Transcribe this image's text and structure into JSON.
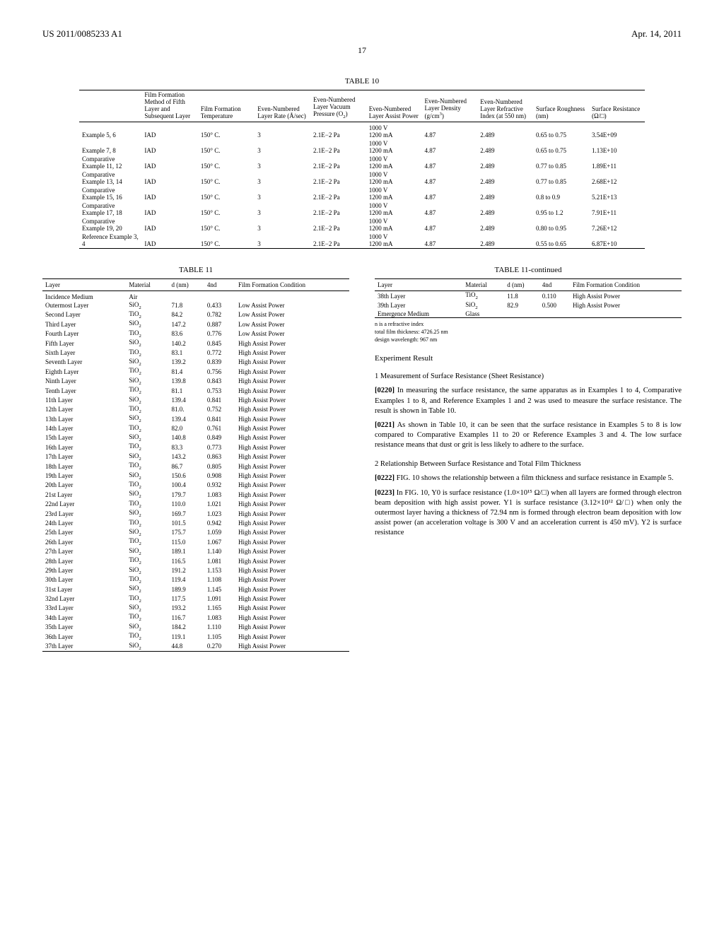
{
  "header": {
    "left": "US 2011/0085233 A1",
    "right": "Apr. 14, 2011",
    "page": "17"
  },
  "table10": {
    "title": "TABLE 10",
    "columns": [
      "",
      "Film Formation Method of Fifth Layer and Subsequent Layer",
      "Film Formation Temperature",
      "Even-Numbered Layer Rate (Å/sec)",
      "Even-Numbered Layer Vacuum Pressure (O₂)",
      "Even-Numbered Layer Assist Power",
      "Even-Numbered Layer Density (g/cm³)",
      "Even-Numbered Layer Refractive Index (at 550 nm)",
      "Surface Roughness (nm)",
      "Surface Resistance (Ω/□)"
    ],
    "rows": [
      [
        "Example 5, 6",
        "IAD",
        "150° C.",
        "3",
        "2.1E−2 Pa",
        "1000 V\n1200 mA",
        "4.87",
        "2.489",
        "0.65 to 0.75",
        "3.54E+09"
      ],
      [
        "Example 7, 8",
        "IAD",
        "150° C.",
        "3",
        "2.1E−2 Pa",
        "1000 V\n1200 mA",
        "4.87",
        "2.489",
        "0.65 to 0.75",
        "1.13E+10"
      ],
      [
        "Comparative Example 11, 12",
        "IAD",
        "150° C.",
        "3",
        "2.1E−2 Pa",
        "1000 V\n1200 mA",
        "4.87",
        "2.489",
        "0.77 to 0.85",
        "1.89E+11"
      ],
      [
        "Comparative Example 13, 14",
        "IAD",
        "150° C.",
        "3",
        "2.1E−2 Pa",
        "1000 V\n1200 mA",
        "4.87",
        "2.489",
        "0.77 to 0.85",
        "2.68E+12"
      ],
      [
        "Comparative Example 15, 16",
        "IAD",
        "150° C.",
        "3",
        "2.1E−2 Pa",
        "1000 V\n1200 mA",
        "4.87",
        "2.489",
        "0.8 to 0.9",
        "5.21E+13"
      ],
      [
        "Comparative Example 17, 18",
        "IAD",
        "150° C.",
        "3",
        "2.1E−2 Pa",
        "1000 V\n1200 mA",
        "4.87",
        "2.489",
        "0.95 to 1.2",
        "7.91E+11"
      ],
      [
        "Comparative Example 19, 20",
        "IAD",
        "150° C.",
        "3",
        "2.1E−2 Pa",
        "1000 V\n1200 mA",
        "4.87",
        "2.489",
        "0.80 to 0.95",
        "7.26E+12"
      ],
      [
        "Reference Example 3, 4",
        "IAD",
        "150° C.",
        "3",
        "2.1E−2 Pa",
        "1000 V\n1200 mA",
        "4.87",
        "2.489",
        "0.55 to 0.65",
        "6.87E+10"
      ]
    ]
  },
  "table11": {
    "title": "TABLE 11",
    "columns": [
      "Layer",
      "Material",
      "d (nm)",
      "4nd",
      "Film Formation Condition"
    ],
    "rows": [
      [
        "Incidence Medium",
        "Air",
        "",
        "",
        ""
      ],
      [
        "Outermost Layer",
        "SiO₂",
        "71.8",
        "0.433",
        "Low Assist Power"
      ],
      [
        "Second Layer",
        "TiO₂",
        "84.2",
        "0.782",
        "Low Assist Power"
      ],
      [
        "Third Layer",
        "SiO₂",
        "147.2",
        "0.887",
        "Low Assist Power"
      ],
      [
        "Fourth Layer",
        "TiO₂",
        "83.6",
        "0.776",
        "Low Assist Power"
      ],
      [
        "Fifth Layer",
        "SiO₂",
        "140.2",
        "0.845",
        "High Assist Power"
      ],
      [
        "Sixth Layer",
        "TiO₂",
        "83.1",
        "0.772",
        "High Assist Power"
      ],
      [
        "Seventh Layer",
        "SiO₂",
        "139.2",
        "0.839",
        "High Assist Power"
      ],
      [
        "Eighth Layer",
        "TiO₂",
        "81.4",
        "0.756",
        "High Assist Power"
      ],
      [
        "Ninth Layer",
        "SiO₂",
        "139.8",
        "0.843",
        "High Assist Power"
      ],
      [
        "Tenth Layer",
        "TiO₂",
        "81.1",
        "0.753",
        "High Assist Power"
      ],
      [
        "11th Layer",
        "SiO₂",
        "139.4",
        "0.841",
        "High Assist Power"
      ],
      [
        "12th Layer",
        "TiO₂",
        "81.0.",
        "0.752",
        "High Assist Power"
      ],
      [
        "13th Layer",
        "SiO₂",
        "139.4",
        "0.841",
        "High Assist Power"
      ],
      [
        "14th Layer",
        "TiO₂",
        "82.0",
        "0.761",
        "High Assist Power"
      ],
      [
        "15th Layer",
        "SiO₂",
        "140.8",
        "0.849",
        "High Assist Power"
      ],
      [
        "16th Layer",
        "TiO₂",
        "83.3",
        "0.773",
        "High Assist Power"
      ],
      [
        "17th Layer",
        "SiO₂",
        "143.2",
        "0.863",
        "High Assist Power"
      ],
      [
        "18th Layer",
        "TiO₂",
        "86.7",
        "0.805",
        "High Assist Power"
      ],
      [
        "19th Layer",
        "SiO₂",
        "150.6",
        "0.908",
        "High Assist Power"
      ],
      [
        "20th Layer",
        "TiO₂",
        "100.4",
        "0.932",
        "High Assist Power"
      ],
      [
        "21st Layer",
        "SiO₂",
        "179.7",
        "1.083",
        "High Assist Power"
      ],
      [
        "22nd Layer",
        "TiO₂",
        "110.0",
        "1.021",
        "High Assist Power"
      ],
      [
        "23rd Layer",
        "SiO₂",
        "169.7",
        "1.023",
        "High Assist Power"
      ],
      [
        "24th Layer",
        "TiO₂",
        "101.5",
        "0.942",
        "High Assist Power"
      ],
      [
        "25th Layer",
        "SiO₂",
        "175.7",
        "1.059",
        "High Assist Power"
      ],
      [
        "26th Layer",
        "TiO₂",
        "115.0",
        "1.067",
        "High Assist Power"
      ],
      [
        "27th Layer",
        "SiO₂",
        "189.1",
        "1.140",
        "High Assist Power"
      ],
      [
        "28th Layer",
        "TiO₂",
        "116.5",
        "1.081",
        "High Assist Power"
      ],
      [
        "29th Layer",
        "SiO₂",
        "191.2",
        "1.153",
        "High Assist Power"
      ],
      [
        "30th Layer",
        "TiO₂",
        "119.4",
        "1.108",
        "High Assist Power"
      ],
      [
        "31st Layer",
        "SiO₂",
        "189.9",
        "1.145",
        "High Assist Power"
      ],
      [
        "32nd Layer",
        "TiO₂",
        "117.5",
        "1.091",
        "High Assist Power"
      ],
      [
        "33rd Layer",
        "SiO₂",
        "193.2",
        "1.165",
        "High Assist Power"
      ],
      [
        "34th Layer",
        "TiO₂",
        "116.7",
        "1.083",
        "High Assist Power"
      ],
      [
        "35th Layer",
        "SiO₂",
        "184.2",
        "1.110",
        "High Assist Power"
      ],
      [
        "36th Layer",
        "TiO₂",
        "119.1",
        "1.105",
        "High Assist Power"
      ],
      [
        "37th Layer",
        "SiO₂",
        "44.8",
        "0.270",
        "High Assist Power"
      ]
    ]
  },
  "table11c": {
    "title": "TABLE 11-continued",
    "columns": [
      "Layer",
      "Material",
      "d (nm)",
      "4nd",
      "Film Formation Condition"
    ],
    "rows": [
      [
        "38th Layer",
        "TiO₂",
        "11.8",
        "0.110",
        "High Assist Power"
      ],
      [
        "39th Layer",
        "SiO₂",
        "82.9",
        "0.500",
        "High Assist Power"
      ],
      [
        "Emergence Medium",
        "Glass",
        "",
        "",
        ""
      ]
    ],
    "footnotes": [
      "n is a refractive index",
      "total film thickness: 4726.25 nm",
      "design wavelength: 967 nm"
    ]
  },
  "text": {
    "sec1": "Experiment Result",
    "sub1": "1 Measurement of Surface Resistance (Sheet Resistance)",
    "p0220": "[0220]   In measuring the surface resistance, the same apparatus as in Examples 1 to 4, Comparative Examples 1 to 8, and Reference Examples 1 and 2 was used to measure the surface resistance. The result is shown in Table 10.",
    "p0221": "[0221]   As shown in Table 10, it can be seen that the surface resistance in Examples 5 to 8 is low compared to Comparative Examples 11 to 20 or Reference Examples 3 and 4. The low surface resistance means that dust or grit is less likely to adhere to the surface.",
    "sub2": "2 Relationship Between Surface Resistance and Total Film Thickness",
    "p0222": "[0222]   FIG. 10 shows the relationship between a film thickness and surface resistance in Example 5.",
    "p0223": "[0223]   In FIG. 10, Y0 is surface resistance (1.0×10¹⁵ Ω/□) when all layers are formed through electron beam deposition with high assist power. Y1 is surface resistance (3.12×10¹² Ω/□) when only the outermost layer having a thickness of 72.94 nm is formed through electron beam deposition with low assist power (an acceleration voltage is 300 V and an acceleration current is 450 mV). Y2 is surface resistance"
  }
}
